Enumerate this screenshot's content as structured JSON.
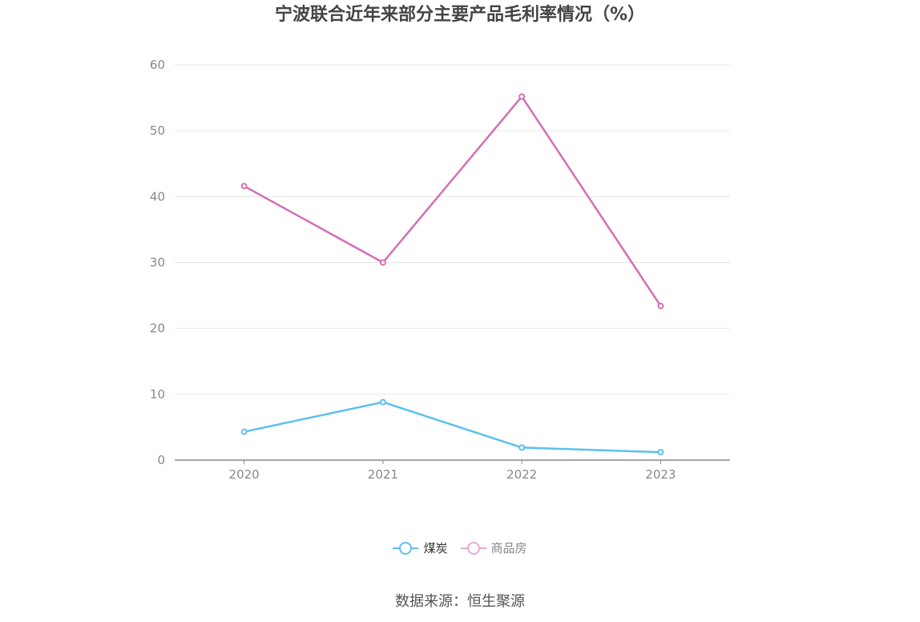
{
  "chart_data": {
    "type": "line",
    "title": "宁波联合近年来部分主要产品毛利率情况（%）",
    "x": [
      "2020",
      "2021",
      "2022",
      "2023"
    ],
    "series": [
      {
        "name": "煤炭",
        "values": [
          4.3,
          8.8,
          1.9,
          1.2
        ],
        "color": "#5bc0f0",
        "legend_color": "#5bc0f0"
      },
      {
        "name": "商品房",
        "values": [
          41.6,
          30.0,
          55.2,
          23.4
        ],
        "color": "#d26fb6",
        "legend_color": "#e8a8d8"
      }
    ],
    "y_ticks": [
      "0",
      "10",
      "20",
      "30",
      "40",
      "50",
      "60"
    ],
    "ylim": [
      0,
      60
    ],
    "grid": true,
    "legend_position": "bottom"
  },
  "source": "数据来源：恒生聚源"
}
